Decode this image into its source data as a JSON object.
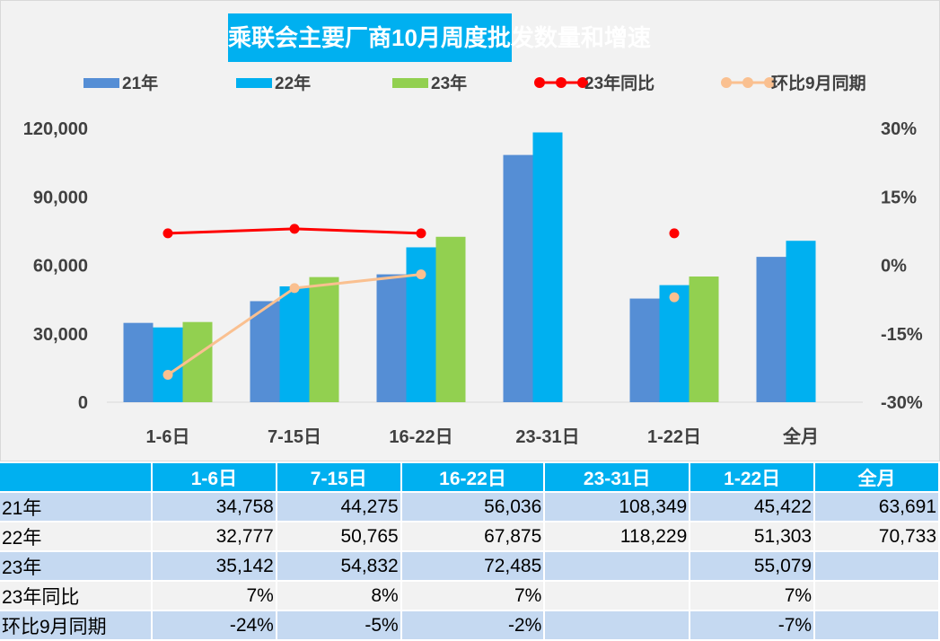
{
  "chart_data": {
    "type": "bar",
    "title": "乘联会主要厂商10月周度批发数量和增速",
    "categories": [
      "1-6日",
      "7-15日",
      "16-22日",
      "23-31日",
      "1-22日",
      "全月"
    ],
    "series": [
      {
        "name": "21年",
        "type": "bar",
        "axis": "left",
        "color": "#558ed5",
        "values": [
          34758,
          44275,
          56036,
          108349,
          45422,
          63691
        ]
      },
      {
        "name": "22年",
        "type": "bar",
        "axis": "left",
        "color": "#00b0f0",
        "values": [
          32777,
          50765,
          67875,
          118229,
          51303,
          70733
        ]
      },
      {
        "name": "23年",
        "type": "bar",
        "axis": "left",
        "color": "#92d050",
        "values": [
          35142,
          54832,
          72485,
          null,
          55079,
          null
        ]
      },
      {
        "name": "23年同比",
        "type": "line",
        "axis": "right",
        "color": "#ff0000",
        "values": [
          7,
          8,
          7,
          null,
          7,
          null
        ]
      },
      {
        "name": "环比9月同期",
        "type": "line",
        "axis": "right",
        "color": "#fac090",
        "values": [
          -24,
          -5,
          -2,
          null,
          -7,
          null
        ]
      }
    ],
    "y_left": {
      "ticks": [
        "0",
        "30,000",
        "60,000",
        "90,000",
        "120,000"
      ],
      "range": [
        0,
        120000
      ]
    },
    "y_right": {
      "ticks": [
        "-30%",
        "-15%",
        "0%",
        "15%",
        "30%"
      ],
      "range": [
        -30,
        30
      ]
    },
    "legend": "top",
    "grid": false
  },
  "table": {
    "header": [
      "",
      "1-6日",
      "7-15日",
      "16-22日",
      "23-31日",
      "1-22日",
      "全月"
    ],
    "rows": [
      [
        "21年",
        "34,758",
        "44,275",
        "56,036",
        "108,349",
        "45,422",
        "63,691"
      ],
      [
        "22年",
        "32,777",
        "50,765",
        "67,875",
        "118,229",
        "51,303",
        "70,733"
      ],
      [
        "23年",
        "35,142",
        "54,832",
        "72,485",
        "",
        "55,079",
        ""
      ],
      [
        "23年同比",
        "7%",
        "8%",
        "7%",
        "",
        "7%",
        ""
      ],
      [
        "环比9月同期",
        "-24%",
        "-5%",
        "-2%",
        "",
        "-7%",
        ""
      ]
    ]
  }
}
